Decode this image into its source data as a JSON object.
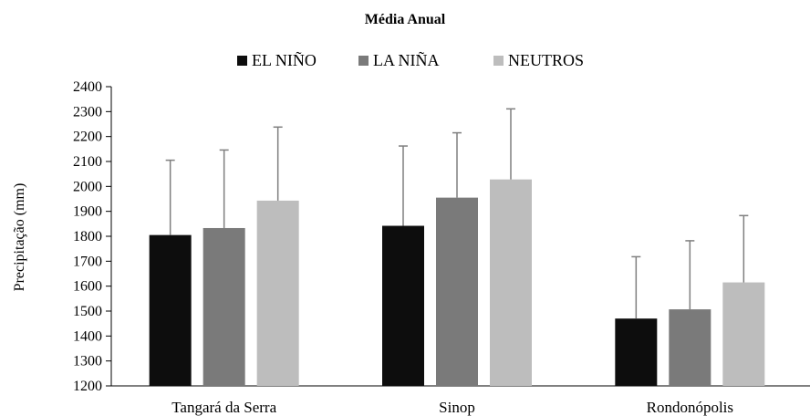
{
  "chart_data": {
    "type": "bar",
    "title": "Média Anual",
    "xlabel": "",
    "ylabel": "Precipitação (mm)",
    "ylim": [
      1200,
      2400
    ],
    "yticks": [
      1200,
      1300,
      1400,
      1500,
      1600,
      1700,
      1800,
      1900,
      2000,
      2100,
      2200,
      2300,
      2400
    ],
    "categories": [
      "Tangará da Serra",
      "Sinop",
      "Rondonópolis"
    ],
    "series": [
      {
        "name": "EL NIÑO",
        "color": "#0d0d0d",
        "values": [
          1805,
          1842,
          1470
        ],
        "error": [
          300,
          320,
          248
        ]
      },
      {
        "name": "LA NIÑA",
        "color": "#7a7a7a",
        "values": [
          1833,
          1955,
          1507
        ],
        "error": [
          313,
          260,
          275
        ]
      },
      {
        "name": "NEUTROS",
        "color": "#bdbdbd",
        "values": [
          1943,
          2028,
          1615
        ],
        "error": [
          295,
          283,
          268
        ]
      }
    ],
    "error_bar_color": "#7f7f7f",
    "grid": false,
    "legend_position": "top-center"
  }
}
